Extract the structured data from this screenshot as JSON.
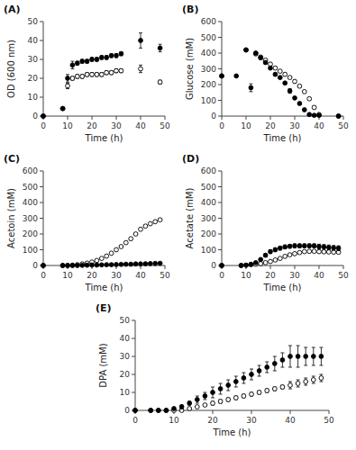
{
  "chart_data": [
    {
      "type": "scatter",
      "title": "(A)",
      "xlabel": "Time (h)",
      "ylabel": "OD (600 nm)",
      "xlim": [
        0,
        50
      ],
      "ylim": [
        0,
        50
      ],
      "xticks": [
        0,
        10,
        20,
        30,
        40,
        50
      ],
      "yticks": [
        0,
        10,
        20,
        30,
        40,
        50
      ],
      "grid": false,
      "series": [
        {
          "color": "black",
          "marker": "circle-open",
          "x": [
            0,
            8,
            10,
            12,
            14,
            16,
            18,
            20,
            22,
            24,
            26,
            28,
            30,
            32,
            40,
            48
          ],
          "values": [
            0,
            4,
            16,
            20,
            21,
            21,
            22,
            22,
            22,
            22,
            23,
            23,
            24,
            24,
            25,
            18
          ],
          "errors": [
            0,
            0.5,
            1.5,
            1,
            1,
            1,
            1,
            1,
            1,
            1,
            1,
            1,
            1,
            1,
            2,
            1
          ]
        },
        {
          "color": "black",
          "marker": "circle",
          "x": [
            0,
            8,
            10,
            12,
            14,
            16,
            18,
            20,
            22,
            24,
            26,
            28,
            30,
            32,
            40,
            48
          ],
          "values": [
            0,
            4,
            20,
            27,
            28,
            29,
            29,
            30,
            30,
            31,
            31,
            32,
            32,
            33,
            40,
            36
          ],
          "errors": [
            0,
            0.5,
            2,
            2,
            1,
            1,
            1,
            1,
            1,
            1,
            1,
            1,
            1,
            1,
            4,
            2
          ]
        }
      ]
    },
    {
      "type": "scatter",
      "title": "(B)",
      "xlabel": "Time (h)",
      "ylabel": "Glucose (mM)",
      "xlim": [
        0,
        50
      ],
      "ylim": [
        0,
        600
      ],
      "xticks": [
        0,
        10,
        20,
        30,
        40,
        50
      ],
      "yticks": [
        0,
        100,
        200,
        300,
        400,
        500,
        600
      ],
      "grid": false,
      "series": [
        {
          "color": "black",
          "marker": "circle-open",
          "x": [
            0,
            10,
            14,
            16,
            18,
            20,
            22,
            24,
            26,
            28,
            30,
            32,
            34,
            36,
            38,
            40,
            48
          ],
          "values": [
            255,
            420,
            395,
            375,
            355,
            330,
            305,
            285,
            265,
            245,
            220,
            190,
            155,
            110,
            55,
            10,
            0
          ],
          "errors": [
            5,
            8,
            8,
            8,
            8,
            8,
            8,
            8,
            8,
            8,
            8,
            8,
            8,
            8,
            8,
            5,
            0
          ]
        },
        {
          "color": "black",
          "marker": "circle",
          "x": [
            0,
            6,
            10,
            12,
            14,
            16,
            18,
            20,
            22,
            24,
            26,
            28,
            30,
            32,
            34,
            36,
            38,
            40,
            48
          ],
          "values": [
            255,
            255,
            420,
            180,
            400,
            370,
            340,
            305,
            265,
            245,
            210,
            160,
            115,
            80,
            40,
            10,
            5,
            5,
            0
          ],
          "errors": [
            5,
            5,
            8,
            25,
            8,
            8,
            8,
            8,
            8,
            8,
            8,
            15,
            8,
            8,
            8,
            5,
            5,
            5,
            0
          ]
        }
      ]
    },
    {
      "type": "scatter",
      "title": "(C)",
      "xlabel": "Time (h)",
      "ylabel": "Acetoin (mM)",
      "xlim": [
        0,
        50
      ],
      "ylim": [
        0,
        600
      ],
      "xticks": [
        0,
        10,
        20,
        30,
        40,
        50
      ],
      "yticks": [
        0,
        100,
        200,
        300,
        400,
        500,
        600
      ],
      "grid": false,
      "series": [
        {
          "color": "black",
          "marker": "circle-open",
          "x": [
            0,
            8,
            10,
            12,
            14,
            16,
            18,
            20,
            22,
            24,
            26,
            28,
            30,
            32,
            34,
            36,
            38,
            40,
            42,
            44,
            46,
            48
          ],
          "values": [
            0,
            0,
            0,
            2,
            5,
            10,
            15,
            22,
            32,
            45,
            60,
            78,
            100,
            120,
            145,
            170,
            200,
            230,
            250,
            265,
            278,
            290
          ],
          "errors": [
            0,
            0,
            0,
            1,
            1,
            1,
            2,
            2,
            3,
            3,
            4,
            4,
            5,
            5,
            5,
            5,
            5,
            5,
            5,
            5,
            5,
            5
          ]
        },
        {
          "color": "black",
          "marker": "circle",
          "x": [
            0,
            8,
            10,
            12,
            14,
            16,
            18,
            20,
            22,
            24,
            26,
            28,
            30,
            32,
            34,
            36,
            38,
            40,
            42,
            44,
            46,
            48
          ],
          "values": [
            0,
            0,
            0,
            0,
            0,
            1,
            2,
            3,
            3,
            4,
            5,
            5,
            6,
            7,
            8,
            8,
            10,
            10,
            11,
            12,
            13,
            14
          ],
          "errors": [
            0,
            0,
            0,
            0,
            0,
            0.5,
            0.5,
            0.5,
            0.5,
            0.5,
            0.5,
            0.5,
            1,
            1,
            1,
            1,
            1,
            1,
            1,
            1,
            1,
            1
          ]
        }
      ]
    },
    {
      "type": "scatter",
      "title": "(D)",
      "xlabel": "Time (h)",
      "ylabel": "Acetate (mM)",
      "xlim": [
        0,
        50
      ],
      "ylim": [
        0,
        600
      ],
      "xticks": [
        0,
        10,
        20,
        30,
        40,
        50
      ],
      "yticks": [
        0,
        100,
        200,
        300,
        400,
        500,
        600
      ],
      "grid": false,
      "series": [
        {
          "color": "black",
          "marker": "circle-open",
          "x": [
            0,
            8,
            10,
            12,
            14,
            16,
            18,
            20,
            22,
            24,
            26,
            28,
            30,
            32,
            34,
            36,
            38,
            40,
            42,
            44,
            46,
            48
          ],
          "values": [
            0,
            0,
            2,
            5,
            8,
            12,
            18,
            25,
            35,
            45,
            58,
            68,
            75,
            82,
            88,
            90,
            90,
            88,
            87,
            86,
            85,
            84
          ],
          "errors": [
            0,
            0,
            1,
            1,
            1,
            2,
            2,
            3,
            3,
            4,
            5,
            5,
            5,
            5,
            5,
            5,
            5,
            5,
            5,
            5,
            5,
            5
          ]
        },
        {
          "color": "black",
          "marker": "circle",
          "x": [
            0,
            8,
            10,
            12,
            14,
            16,
            18,
            20,
            22,
            24,
            26,
            28,
            30,
            32,
            34,
            36,
            38,
            40,
            42,
            44,
            46,
            48
          ],
          "values": [
            0,
            0,
            2,
            8,
            18,
            38,
            65,
            88,
            100,
            110,
            118,
            122,
            125,
            125,
            125,
            125,
            125,
            120,
            118,
            115,
            112,
            110
          ],
          "errors": [
            0,
            0,
            1,
            2,
            5,
            8,
            10,
            12,
            12,
            12,
            12,
            12,
            12,
            12,
            12,
            12,
            12,
            15,
            15,
            15,
            15,
            15
          ]
        }
      ]
    },
    {
      "type": "scatter",
      "title": "(E)",
      "xlabel": "Time (h)",
      "ylabel": "DPA (mM)",
      "xlim": [
        0,
        50
      ],
      "ylim": [
        0,
        50
      ],
      "xticks": [
        0,
        10,
        20,
        30,
        40,
        50
      ],
      "yticks": [
        0,
        10,
        20,
        30,
        40,
        50
      ],
      "grid": false,
      "series": [
        {
          "color": "black",
          "marker": "circle-open",
          "x": [
            0,
            4,
            6,
            8,
            10,
            12,
            14,
            16,
            18,
            20,
            22,
            24,
            26,
            28,
            30,
            32,
            34,
            36,
            38,
            40,
            42,
            44,
            46,
            48
          ],
          "values": [
            0,
            0,
            0,
            0,
            0,
            0,
            1,
            2,
            3,
            4,
            5,
            6,
            7,
            8,
            9,
            10,
            11,
            12,
            13,
            14,
            15,
            16,
            17,
            18
          ],
          "errors": [
            0,
            0,
            0,
            0,
            0,
            0,
            0.5,
            0.5,
            0.5,
            1,
            1,
            1,
            1,
            1,
            1,
            1,
            1,
            1,
            1,
            2,
            2,
            2,
            2,
            2
          ]
        },
        {
          "color": "black",
          "marker": "circle",
          "x": [
            0,
            4,
            6,
            8,
            10,
            12,
            14,
            16,
            18,
            20,
            22,
            24,
            26,
            28,
            30,
            32,
            34,
            36,
            38,
            40,
            42,
            44,
            46,
            48
          ],
          "values": [
            0,
            0,
            0,
            0,
            1,
            2,
            4,
            6,
            8,
            10,
            12,
            14,
            16,
            18,
            20,
            22,
            24,
            26,
            28,
            30,
            30,
            30,
            30,
            30
          ],
          "errors": [
            0,
            0,
            0,
            0,
            0.5,
            1,
            1,
            2,
            2,
            3,
            3,
            3,
            3,
            3,
            3,
            3,
            3,
            4,
            4,
            6,
            6,
            5,
            5,
            5
          ]
        }
      ]
    }
  ]
}
